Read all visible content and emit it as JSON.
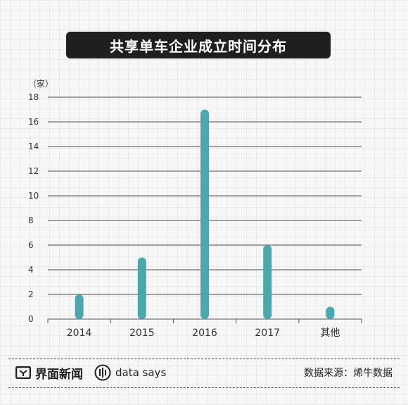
{
  "title": "共享单车企业成立时间分布",
  "chart_data": {
    "type": "bar",
    "unit_label": "（家）",
    "categories": [
      "2014",
      "2015",
      "2016",
      "2017",
      "其他"
    ],
    "values": [
      2,
      5,
      17,
      6,
      1
    ],
    "ylim": [
      0,
      18
    ],
    "yticks": [
      0,
      2,
      4,
      6,
      8,
      10,
      12,
      14,
      16,
      18
    ],
    "bar_color": "#4aa7ad",
    "grid": true
  },
  "footer": {
    "brand": "界面新闻",
    "data_brand": "data says",
    "source": "数据来源：烯牛数据"
  }
}
